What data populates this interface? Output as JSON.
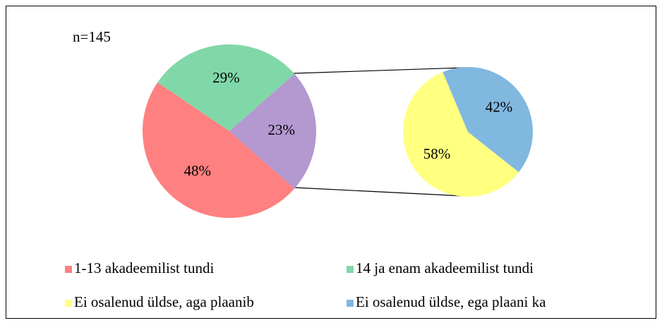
{
  "chart_data": {
    "type": "pie-of-pie",
    "annotation": "n=145",
    "pie": {
      "categories": [
        "1-13 akadeemilist tundi",
        "14 ja enam akadeemilist tundi",
        null
      ],
      "values": [
        48,
        29,
        23
      ],
      "value_labels": [
        "48%",
        "29%",
        "23%"
      ],
      "colors": [
        "#ff8080",
        "#80d8a8",
        "#b498d0"
      ]
    },
    "secondary": {
      "categories": [
        "Ei osalenud üldse, aga plaanib",
        "Ei osalenud üldse, ega plaani ka"
      ],
      "values": [
        58,
        42
      ],
      "value_labels": [
        "58%",
        "42%"
      ],
      "colors": [
        "#ffff80",
        "#80b8e0"
      ]
    },
    "legend": true
  }
}
